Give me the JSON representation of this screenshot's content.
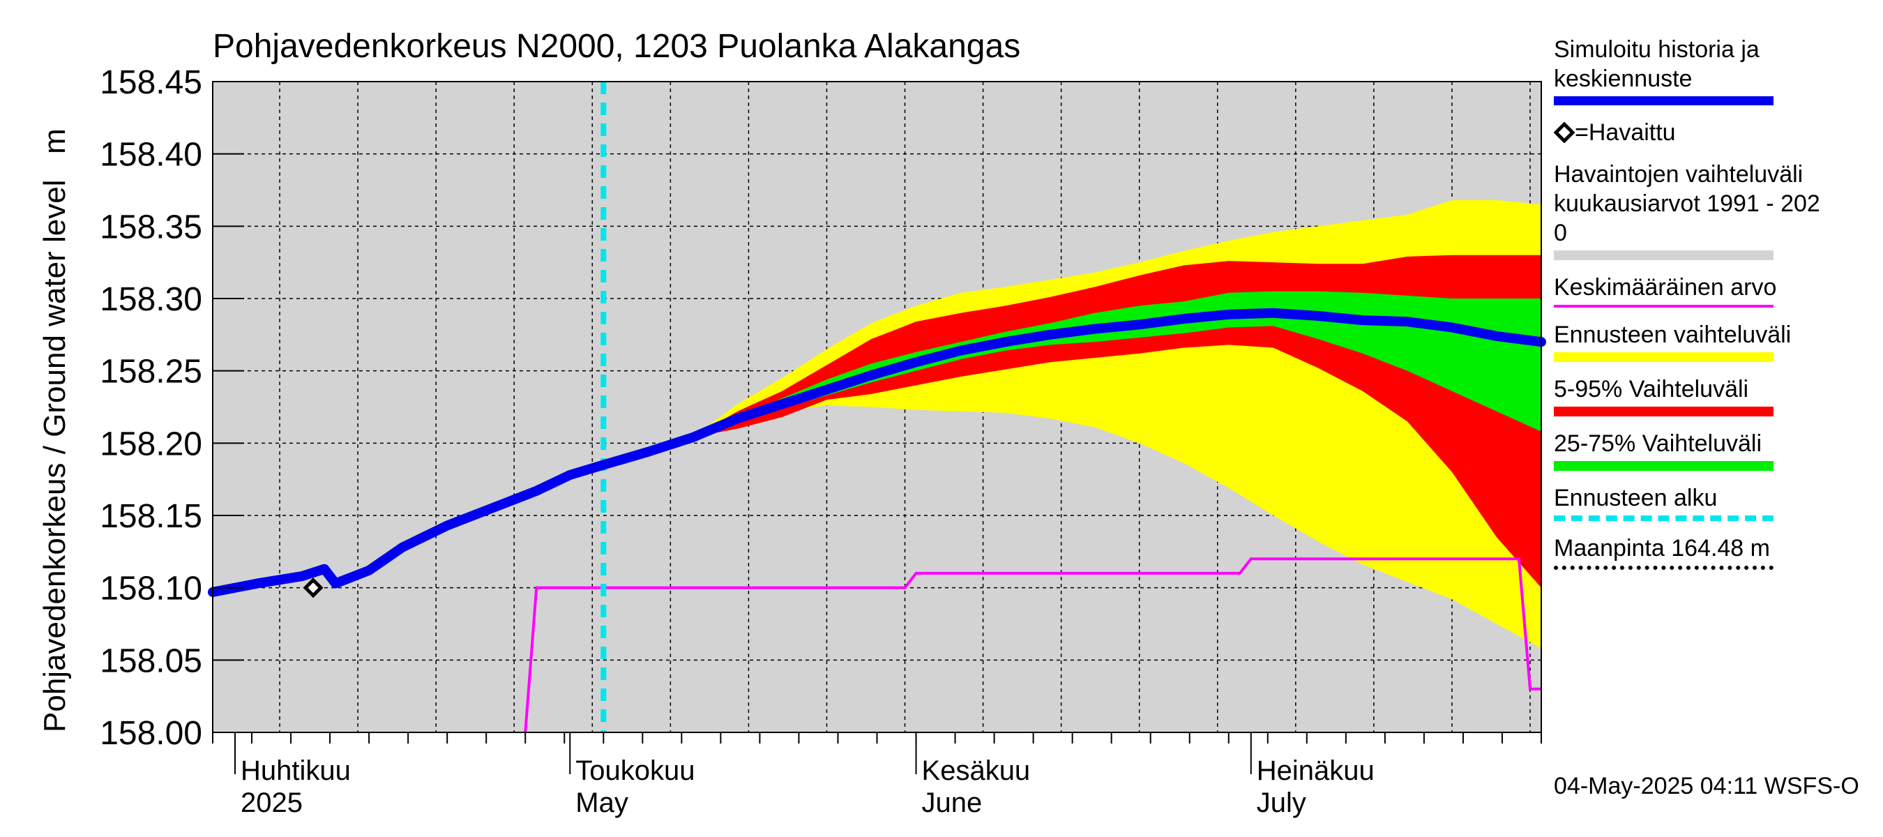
{
  "chart_data": {
    "type": "area",
    "title": "Pohjavedenkorkeus N2000, 1203 Puolanka Alakangas",
    "ylabel": "Pohjavedenkorkeus / Ground water level   m",
    "ylim": [
      158.0,
      158.45
    ],
    "yticks": [
      "158.45",
      "158.40",
      "158.35",
      "158.30",
      "158.25",
      "158.20",
      "158.15",
      "158.10",
      "158.05",
      "158.00"
    ],
    "xlim": [
      "2025-03-30",
      "2025-07-27"
    ],
    "month_labels": [
      {
        "fi": "Huhtikuu",
        "en": "2025",
        "date": "2025-04-01"
      },
      {
        "fi": "Toukokuu",
        "en": "May",
        "date": "2025-05-01"
      },
      {
        "fi": "Kesäkuu",
        "en": "June",
        "date": "2025-06-01"
      },
      {
        "fi": "Heinäkuu",
        "en": "July",
        "date": "2025-07-01"
      }
    ],
    "forecast_start": "2025-05-04",
    "observed": [
      {
        "date": "2025-04-08",
        "value": 158.1
      }
    ],
    "simulated_mean": [
      [
        "2025-03-30",
        158.097
      ],
      [
        "2025-04-03",
        158.103
      ],
      [
        "2025-04-07",
        158.108
      ],
      [
        "2025-04-09",
        158.113
      ],
      [
        "2025-04-10",
        158.103
      ],
      [
        "2025-04-13",
        158.112
      ],
      [
        "2025-04-16",
        158.128
      ],
      [
        "2025-04-20",
        158.143
      ],
      [
        "2025-04-24",
        158.155
      ],
      [
        "2025-04-28",
        158.167
      ],
      [
        "2025-05-01",
        158.178
      ],
      [
        "2025-05-04",
        158.185
      ],
      [
        "2025-05-08",
        158.194
      ],
      [
        "2025-05-12",
        158.204
      ],
      [
        "2025-05-16",
        158.217
      ],
      [
        "2025-05-20",
        158.227
      ],
      [
        "2025-05-24",
        158.237
      ],
      [
        "2025-05-28",
        158.247
      ],
      [
        "2025-06-01",
        158.256
      ],
      [
        "2025-06-05",
        158.264
      ],
      [
        "2025-06-09",
        158.27
      ],
      [
        "2025-06-13",
        158.275
      ],
      [
        "2025-06-17",
        158.279
      ],
      [
        "2025-06-21",
        158.282
      ],
      [
        "2025-06-25",
        158.286
      ],
      [
        "2025-06-29",
        158.289
      ],
      [
        "2025-07-03",
        158.29
      ],
      [
        "2025-07-07",
        158.288
      ],
      [
        "2025-07-11",
        158.285
      ],
      [
        "2025-07-15",
        158.284
      ],
      [
        "2025-07-19",
        158.28
      ],
      [
        "2025-07-23",
        158.274
      ],
      [
        "2025-07-27",
        158.27
      ]
    ],
    "band_outer": [
      [
        "2025-05-12",
        158.204,
        158.204
      ],
      [
        "2025-05-16",
        158.214,
        158.227
      ],
      [
        "2025-05-20",
        158.222,
        158.245
      ],
      [
        "2025-05-24",
        158.226,
        158.265
      ],
      [
        "2025-05-28",
        158.225,
        158.283
      ],
      [
        "2025-06-01",
        158.223,
        158.295
      ],
      [
        "2025-06-05",
        158.222,
        158.304
      ],
      [
        "2025-06-09",
        158.221,
        158.308
      ],
      [
        "2025-06-13",
        158.217,
        158.313
      ],
      [
        "2025-06-17",
        158.211,
        158.318
      ],
      [
        "2025-06-21",
        158.2,
        158.325
      ],
      [
        "2025-06-25",
        158.186,
        158.333
      ],
      [
        "2025-06-29",
        158.169,
        158.34
      ],
      [
        "2025-07-03",
        158.15,
        158.346
      ],
      [
        "2025-07-07",
        158.132,
        158.35
      ],
      [
        "2025-07-11",
        158.116,
        158.354
      ],
      [
        "2025-07-15",
        158.104,
        158.358
      ],
      [
        "2025-07-19",
        158.092,
        158.368
      ],
      [
        "2025-07-23",
        158.075,
        158.368
      ],
      [
        "2025-07-27",
        158.058,
        158.365
      ]
    ],
    "band_5_95": [
      [
        "2025-05-12",
        158.204,
        158.204
      ],
      [
        "2025-05-16",
        158.21,
        158.222
      ],
      [
        "2025-05-20",
        158.218,
        158.236
      ],
      [
        "2025-05-24",
        158.23,
        158.254
      ],
      [
        "2025-05-28",
        158.234,
        158.272
      ],
      [
        "2025-06-01",
        158.24,
        158.284
      ],
      [
        "2025-06-05",
        158.246,
        158.29
      ],
      [
        "2025-06-09",
        158.251,
        158.295
      ],
      [
        "2025-06-13",
        158.256,
        158.301
      ],
      [
        "2025-06-17",
        158.259,
        158.308
      ],
      [
        "2025-06-21",
        158.262,
        158.316
      ],
      [
        "2025-06-25",
        158.266,
        158.323
      ],
      [
        "2025-06-29",
        158.268,
        158.326
      ],
      [
        "2025-07-03",
        158.266,
        158.325
      ],
      [
        "2025-07-07",
        158.252,
        158.324
      ],
      [
        "2025-07-11",
        158.236,
        158.324
      ],
      [
        "2025-07-15",
        158.215,
        158.329
      ],
      [
        "2025-07-19",
        158.18,
        158.33
      ],
      [
        "2025-07-23",
        158.135,
        158.33
      ],
      [
        "2025-07-27",
        158.1,
        158.33
      ]
    ],
    "band_25_75": [
      [
        "2025-05-16",
        158.214,
        158.218
      ],
      [
        "2025-05-20",
        158.224,
        158.231
      ],
      [
        "2025-05-24",
        158.233,
        158.244
      ],
      [
        "2025-05-28",
        158.242,
        158.255
      ],
      [
        "2025-06-01",
        158.25,
        158.263
      ],
      [
        "2025-06-05",
        158.258,
        158.27
      ],
      [
        "2025-06-09",
        158.264,
        158.277
      ],
      [
        "2025-06-13",
        158.268,
        158.283
      ],
      [
        "2025-06-17",
        158.27,
        158.29
      ],
      [
        "2025-06-21",
        158.273,
        158.295
      ],
      [
        "2025-06-25",
        158.276,
        158.298
      ],
      [
        "2025-06-29",
        158.28,
        158.304
      ],
      [
        "2025-07-03",
        158.281,
        158.305
      ],
      [
        "2025-07-07",
        158.272,
        158.305
      ],
      [
        "2025-07-11",
        158.262,
        158.304
      ],
      [
        "2025-07-15",
        158.25,
        158.302
      ],
      [
        "2025-07-19",
        158.236,
        158.3
      ],
      [
        "2025-07-23",
        158.222,
        158.3
      ],
      [
        "2025-07-27",
        158.208,
        158.3
      ]
    ],
    "mean_level": [
      [
        "2025-04-27",
        158.0
      ],
      [
        "2025-04-28",
        158.1
      ],
      [
        "2025-05-31",
        158.1
      ],
      [
        "2025-06-01",
        158.11
      ],
      [
        "2025-06-30",
        158.11
      ],
      [
        "2025-07-01",
        158.12
      ],
      [
        "2025-07-25",
        158.12
      ],
      [
        "2025-07-26",
        158.03
      ],
      [
        "2025-07-27",
        158.03
      ]
    ]
  },
  "legend": {
    "items": [
      {
        "label": "Simuloitu historia ja\nkeskiennuste",
        "kind": "line",
        "color": "#0000ee"
      },
      {
        "label": "=Havaittu",
        "kind": "marker",
        "color": "#000000"
      },
      {
        "label": "Havaintojen vaihteluväli\n kuukausiarvot 1991 - 202\n0",
        "kind": "band",
        "color": "#d3d3d3"
      },
      {
        "label": "Keskimääräinen arvo",
        "kind": "thin",
        "color": "#ff00ff"
      },
      {
        "label": "Ennusteen vaihteluväli",
        "kind": "band",
        "color": "#ffff00"
      },
      {
        "label": "5-95% Vaihteluväli",
        "kind": "band",
        "color": "#ff0000"
      },
      {
        "label": "25-75% Vaihteluväli",
        "kind": "band",
        "color": "#00ee00"
      },
      {
        "label": "Ennusteen alku",
        "kind": "dashed",
        "color": "#00e5ee"
      },
      {
        "label": "Maanpinta 164.48 m",
        "kind": "dotted",
        "color": "#000000"
      }
    ]
  },
  "timestamp": "04-May-2025 04:11 WSFS-O",
  "colors": {
    "background": "#d3d3d3",
    "outer_band": "#ffff00",
    "band_5_95": "#ff0000",
    "band_25_75": "#00ee00",
    "simulated": "#0000ee",
    "mean": "#ff00ff",
    "forecast_start": "#00e5ee"
  }
}
